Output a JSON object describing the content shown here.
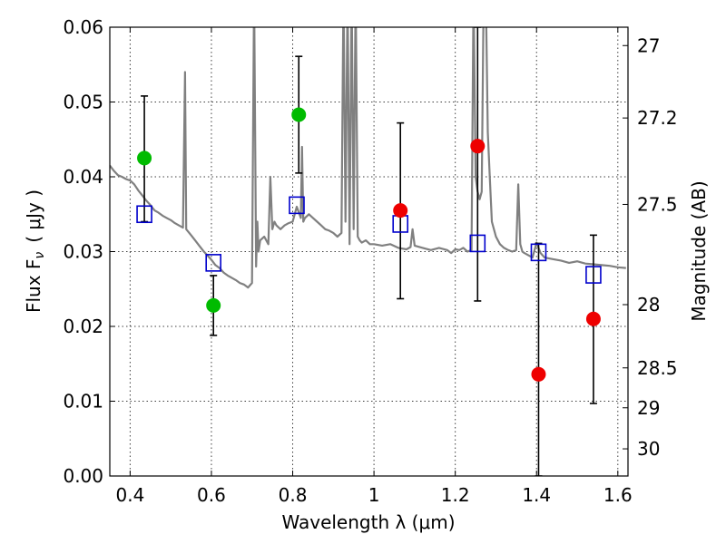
{
  "chart_data": {
    "type": "scatter",
    "xlabel": "Wavelength  λ (μm)",
    "ylabel_left": "Flux  F",
    "ylabel_subscript": "ν",
    "ylabel_unit": "( μJy )",
    "ylabel_right": "Magnitude (AB)",
    "xlim": [
      0.35,
      1.625
    ],
    "ylim": [
      0.0,
      0.06
    ],
    "grid": true,
    "x_ticks": [
      {
        "value": 0.4,
        "label": "0.4"
      },
      {
        "value": 0.6,
        "label": "0.6"
      },
      {
        "value": 0.8,
        "label": "0.8"
      },
      {
        "value": 1.0,
        "label": "1"
      },
      {
        "value": 1.2,
        "label": "1.2"
      },
      {
        "value": 1.4,
        "label": "1.4"
      },
      {
        "value": 1.6,
        "label": "1.6"
      }
    ],
    "y_ticks": [
      {
        "value": 0.0,
        "label": "0.00"
      },
      {
        "value": 0.01,
        "label": "0.01"
      },
      {
        "value": 0.02,
        "label": "0.02"
      },
      {
        "value": 0.03,
        "label": "0.03"
      },
      {
        "value": 0.04,
        "label": "0.04"
      },
      {
        "value": 0.05,
        "label": "0.05"
      },
      {
        "value": 0.06,
        "label": "0.06"
      }
    ],
    "y_right_ticks": [
      {
        "value": 27,
        "label": "27"
      },
      {
        "value": 27.2,
        "label": "27.2"
      },
      {
        "value": 27.5,
        "label": "27.5"
      },
      {
        "value": 28,
        "label": "28"
      },
      {
        "value": 28.5,
        "label": "28.5"
      },
      {
        "value": 29,
        "label": "29"
      },
      {
        "value": 30,
        "label": "30"
      }
    ],
    "template_spectrum": {
      "color": "#808080",
      "x": [
        0.35,
        0.36,
        0.37,
        0.38,
        0.39,
        0.4,
        0.41,
        0.42,
        0.43,
        0.44,
        0.45,
        0.46,
        0.47,
        0.48,
        0.49,
        0.5,
        0.51,
        0.52,
        0.53,
        0.535,
        0.538,
        0.541,
        0.55,
        0.56,
        0.57,
        0.58,
        0.59,
        0.6,
        0.61,
        0.62,
        0.63,
        0.64,
        0.65,
        0.66,
        0.67,
        0.68,
        0.69,
        0.7,
        0.705,
        0.71,
        0.713,
        0.716,
        0.72,
        0.73,
        0.74,
        0.745,
        0.75,
        0.755,
        0.76,
        0.77,
        0.78,
        0.79,
        0.8,
        0.81,
        0.82,
        0.823,
        0.826,
        0.83,
        0.84,
        0.85,
        0.86,
        0.87,
        0.88,
        0.89,
        0.9,
        0.91,
        0.92,
        0.925,
        0.93,
        0.935,
        0.94,
        0.945,
        0.95,
        0.955,
        0.96,
        0.965,
        0.97,
        0.98,
        0.99,
        1.0,
        1.02,
        1.04,
        1.06,
        1.08,
        1.09,
        1.095,
        1.1,
        1.12,
        1.14,
        1.16,
        1.18,
        1.19,
        1.2,
        1.21,
        1.22,
        1.23,
        1.24,
        1.245,
        1.25,
        1.255,
        1.26,
        1.265,
        1.27,
        1.275,
        1.28,
        1.285,
        1.29,
        1.3,
        1.31,
        1.32,
        1.33,
        1.34,
        1.35,
        1.355,
        1.36,
        1.365,
        1.37,
        1.38,
        1.39,
        1.4,
        1.41,
        1.42,
        1.44,
        1.46,
        1.48,
        1.5,
        1.52,
        1.54,
        1.56,
        1.58,
        1.6,
        1.62
      ],
      "y": [
        0.0415,
        0.0408,
        0.0402,
        0.04,
        0.0397,
        0.0395,
        0.039,
        0.0382,
        0.0375,
        0.0368,
        0.0362,
        0.0355,
        0.0352,
        0.0348,
        0.0345,
        0.0342,
        0.0338,
        0.0335,
        0.0332,
        0.054,
        0.033,
        0.0328,
        0.0322,
        0.0315,
        0.0308,
        0.0301,
        0.0295,
        0.0289,
        0.0282,
        0.0278,
        0.0272,
        0.0268,
        0.0265,
        0.0262,
        0.0258,
        0.0256,
        0.0252,
        0.0258,
        0.065,
        0.028,
        0.034,
        0.03,
        0.0315,
        0.032,
        0.031,
        0.04,
        0.033,
        0.034,
        0.0335,
        0.033,
        0.0335,
        0.0338,
        0.034,
        0.036,
        0.0345,
        0.044,
        0.034,
        0.0345,
        0.035,
        0.0345,
        0.034,
        0.0335,
        0.033,
        0.0328,
        0.0325,
        0.032,
        0.0325,
        0.065,
        0.034,
        0.065,
        0.031,
        0.065,
        0.033,
        0.065,
        0.032,
        0.0315,
        0.0312,
        0.0315,
        0.031,
        0.031,
        0.0308,
        0.031,
        0.0305,
        0.0303,
        0.0306,
        0.033,
        0.0308,
        0.0305,
        0.0302,
        0.0305,
        0.0302,
        0.0298,
        0.0303,
        0.0302,
        0.0305,
        0.03,
        0.0302,
        0.065,
        0.04,
        0.038,
        0.037,
        0.038,
        0.065,
        0.065,
        0.046,
        0.04,
        0.034,
        0.032,
        0.031,
        0.0305,
        0.0302,
        0.03,
        0.0302,
        0.039,
        0.031,
        0.03,
        0.0298,
        0.0295,
        0.0292,
        0.0312,
        0.0298,
        0.0292,
        0.029,
        0.0288,
        0.0285,
        0.0287,
        0.0284,
        0.0283,
        0.0282,
        0.0281,
        0.0279,
        0.0278
      ]
    },
    "series": [
      {
        "marker": "open-square",
        "color": "#0000cc",
        "points": [
          {
            "x": 0.435,
            "y": 0.035
          },
          {
            "x": 0.605,
            "y": 0.0285
          },
          {
            "x": 0.81,
            "y": 0.0362
          },
          {
            "x": 1.065,
            "y": 0.0337
          },
          {
            "x": 1.255,
            "y": 0.0311
          },
          {
            "x": 1.405,
            "y": 0.0299
          },
          {
            "x": 1.54,
            "y": 0.0269
          }
        ]
      },
      {
        "marker": "filled-circle",
        "color": "#00bb00",
        "points": [
          {
            "x": 0.435,
            "y": 0.0425,
            "yerr_low": 0.034,
            "yerr_high": 0.0508
          },
          {
            "x": 0.605,
            "y": 0.0228,
            "yerr_low": 0.0188,
            "yerr_high": 0.0268
          },
          {
            "x": 0.815,
            "y": 0.0483,
            "yerr_low": 0.0405,
            "yerr_high": 0.0561
          }
        ]
      },
      {
        "marker": "filled-circle",
        "color": "#ee0000",
        "points": [
          {
            "x": 1.065,
            "y": 0.0355,
            "yerr_low": 0.0237,
            "yerr_high": 0.0472
          },
          {
            "x": 1.255,
            "y": 0.0441,
            "yerr_low": 0.0234,
            "yerr_high": 0.06
          },
          {
            "x": 1.405,
            "y": 0.0136,
            "yerr_low": 0.0,
            "yerr_high": 0.0311
          },
          {
            "x": 1.54,
            "y": 0.021,
            "yerr_low": 0.0097,
            "yerr_high": 0.0322
          }
        ]
      }
    ]
  }
}
